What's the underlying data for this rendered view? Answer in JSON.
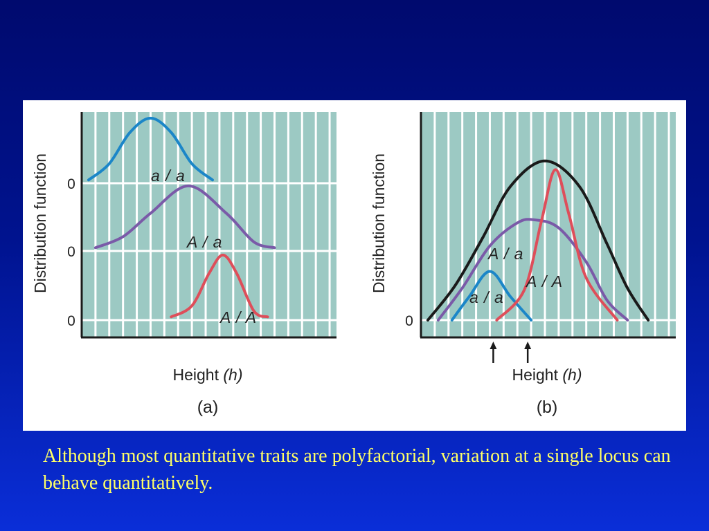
{
  "slide": {
    "caption": "Although most quantitative traits are polyfactorial, variation at a single locus can behave quantitatively.",
    "caption_color": "#ffff66",
    "background_color": "#00138f"
  },
  "chart_data": [
    {
      "type": "line",
      "panel_label": "(a)",
      "ylabel": "Distribution function",
      "xlabel": "Height",
      "xlabel_symbol": "(h)",
      "xlim": [
        0,
        37
      ],
      "grid": true,
      "plot_background": "#9cc9c3",
      "baseline_ticks": [
        "0",
        "0",
        "0"
      ],
      "series": [
        {
          "name": "a / a",
          "color": "#1b86c8",
          "baseline_index": 0,
          "amplitude": 0.96,
          "x": [
            1,
            4,
            7,
            10,
            13,
            16,
            19
          ],
          "y": [
            0.05,
            0.3,
            0.78,
            1.0,
            0.78,
            0.3,
            0.05
          ]
        },
        {
          "name": "A / a",
          "color": "#7a5aa8",
          "baseline_index": 1,
          "amplitude": 0.96,
          "x": [
            2,
            6,
            10,
            15.5,
            21,
            25,
            28
          ],
          "y": [
            0.05,
            0.22,
            0.58,
            1.0,
            0.58,
            0.14,
            0.05
          ]
        },
        {
          "name": "A / A",
          "color": "#de4e5a",
          "baseline_index": 2,
          "amplitude": 0.96,
          "x": [
            13,
            16,
            18.5,
            20.5,
            22.5,
            25,
            27
          ],
          "y": [
            0.05,
            0.22,
            0.72,
            1.0,
            0.72,
            0.14,
            0.05
          ]
        }
      ]
    },
    {
      "type": "line",
      "panel_label": "(b)",
      "ylabel": "Distribution function",
      "xlabel": "Height",
      "xlabel_symbol": "(h)",
      "xlim": [
        0,
        37
      ],
      "grid": true,
      "plot_background": "#9cc9c3",
      "baseline_ticks": [
        "0"
      ],
      "arrow_positions": [
        10.5,
        15.5
      ],
      "series": [
        {
          "name": "",
          "color": "#1a1a1a",
          "baseline_index": 0,
          "amplitude": 2.35,
          "x": [
            1,
            5,
            9,
            13,
            18,
            23,
            27,
            30,
            33
          ],
          "y": [
            0.0,
            0.22,
            0.52,
            0.84,
            1.0,
            0.84,
            0.48,
            0.2,
            0.0
          ]
        },
        {
          "name": "A / a",
          "color": "#7a5aa8",
          "baseline_index": 0,
          "amplitude": 1.48,
          "x": [
            2.5,
            6,
            10,
            14,
            16.5,
            20,
            24,
            27,
            30
          ],
          "y": [
            0.0,
            0.32,
            0.74,
            0.97,
            1.0,
            0.92,
            0.58,
            0.2,
            0.0
          ]
        },
        {
          "name": "a / a",
          "color": "#1b86c8",
          "baseline_index": 0,
          "amplitude": 0.72,
          "x": [
            4.5,
            7,
            10,
            13,
            16
          ],
          "y": [
            0.0,
            0.48,
            1.0,
            0.48,
            0.0
          ]
        },
        {
          "name": "A / A",
          "color": "#de4e5a",
          "baseline_index": 0,
          "amplitude": 2.22,
          "x": [
            11,
            15,
            17.5,
            19.5,
            21.5,
            24,
            28.5
          ],
          "y": [
            0.0,
            0.2,
            0.66,
            1.0,
            0.7,
            0.28,
            0.0
          ]
        }
      ]
    }
  ]
}
